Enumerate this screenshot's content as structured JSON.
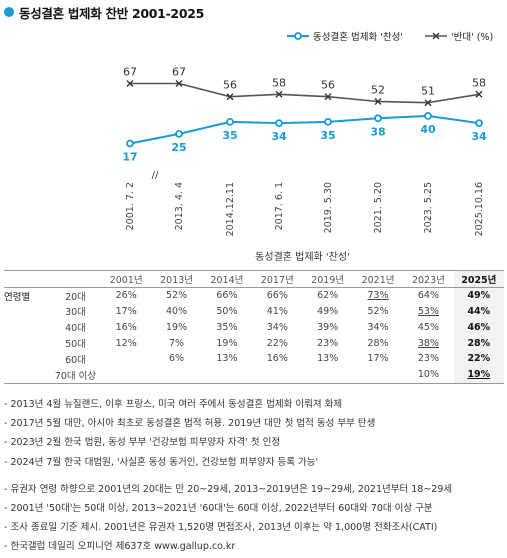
{
  "title": "동성결혼 법제화 찬반 2001-2025",
  "colors": {
    "accent": "#1a9ad6",
    "oppose": "#555555"
  },
  "chart_data": {
    "type": "line",
    "categories": [
      "2001. 7. 2",
      "2013. 4. 4",
      "2014.12.11",
      "2017. 6. 1",
      "2019. 5.30",
      "2021. 5.20",
      "2023. 5.25",
      "2025.10.16"
    ],
    "axis_break_label": "//",
    "series": [
      {
        "name": "동성결혼 법제화 '찬성'",
        "values": [
          17,
          25,
          35,
          34,
          35,
          38,
          40,
          34
        ],
        "color": "#1a9ad6",
        "marker": "circle"
      },
      {
        "name": "'반대' (%)",
        "values": [
          67,
          67,
          56,
          58,
          56,
          52,
          51,
          58
        ],
        "color": "#555555",
        "marker": "x"
      }
    ],
    "legend_position": "top-right",
    "grid": false
  },
  "table": {
    "group_title": "동성결혼 법제화 '찬성'",
    "years": [
      "2001년",
      "2013년",
      "2014년",
      "2017년",
      "2019년",
      "2021년",
      "2023년",
      "2025년"
    ],
    "rows": [
      {
        "group": "연령별",
        "label": "20대",
        "cells": [
          "26%",
          "52%",
          "66%",
          "66%",
          "62%",
          "73%",
          "64%",
          "49%"
        ],
        "underline": [
          5
        ]
      },
      {
        "group": "",
        "label": "30대",
        "cells": [
          "17%",
          "40%",
          "50%",
          "41%",
          "49%",
          "52%",
          "53%",
          "44%"
        ],
        "underline": [
          6
        ]
      },
      {
        "group": "",
        "label": "40대",
        "cells": [
          "16%",
          "19%",
          "35%",
          "34%",
          "39%",
          "34%",
          "45%",
          "46%"
        ],
        "underline": []
      },
      {
        "group": "",
        "label": "50대",
        "cells": [
          "12%",
          "7%",
          "19%",
          "22%",
          "23%",
          "28%",
          "38%",
          "28%"
        ],
        "underline": [
          6
        ]
      },
      {
        "group": "",
        "label": "60대",
        "cells": [
          "",
          "6%",
          "13%",
          "16%",
          "13%",
          "17%",
          "23%",
          "22%"
        ],
        "underline": []
      },
      {
        "group": "",
        "label": "70대 이상",
        "cells": [
          "",
          "",
          "",
          "",
          "",
          "",
          "10%",
          "19%"
        ],
        "underline": [
          7
        ]
      }
    ]
  },
  "notes_events": [
    "- 2013년 4월 뉴질랜드, 이후 프랑스, 미국 여러 주에서 동성결혼 법제화 이뤄져 화제",
    "- 2017년 5월 대만, 아시아 최초로 동성결혼 법적 허용. 2019년 대만 첫 법적 동성 부부 탄생",
    "- 2023년 2월 한국 법원, 동성 부부 '건강보험 피부양자 자격' 첫 인정",
    "- 2024년 7월 한국 대법원, '사실혼 동성 동거인, 건강보험 피부양자 등록 가능'"
  ],
  "notes_method": [
    "- 유권자 연령 하향으로 2001년의 20대는 만 20~29세, 2013~2019년은 19~29세, 2021년부터 18~29세",
    "- 2001년 '50대'는 50대 이상, 2013~2021년 '60대'는 60대 이상, 2022년부터 60대와 70대 이상 구분",
    "- 조사 종료일 기준 제시. 2001년은 유권자 1,520명 면접조사, 2013년 이후는 약 1,000명 전화조사(CATI)",
    "- 한국갤럽 데일리 오피니언 제637호 www.gallup.co.kr"
  ]
}
